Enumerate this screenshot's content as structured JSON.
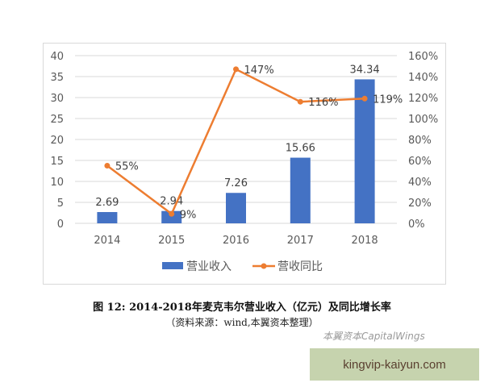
{
  "chart_data": {
    "type": "bar+line",
    "categories": [
      "2014",
      "2015",
      "2016",
      "2017",
      "2018"
    ],
    "series": [
      {
        "name": "营业收入",
        "type": "bar",
        "axis": "left",
        "values": [
          2.69,
          2.94,
          7.26,
          15.66,
          34.34
        ],
        "labels": [
          "2.69",
          "2.94",
          "7.26",
          "15.66",
          "34.34"
        ],
        "color": "#4472c4"
      },
      {
        "name": "营收同比",
        "type": "line",
        "axis": "right",
        "values": [
          55,
          9,
          147,
          116,
          119
        ],
        "labels": [
          "55%",
          "9%",
          "147%",
          "116%",
          "119%"
        ],
        "color": "#ed7d31"
      }
    ],
    "ylim": [
      0,
      40
    ],
    "yticks": [
      "0",
      "5",
      "10",
      "15",
      "20",
      "25",
      "30",
      "35",
      "40"
    ],
    "y2lim": [
      0,
      160
    ],
    "y2ticks": [
      "0%",
      "20%",
      "40%",
      "60%",
      "80%",
      "100%",
      "120%",
      "140%",
      "160%"
    ],
    "grid": true,
    "legend": "bottom"
  },
  "caption": "图 12:  2014-2018年麦克韦尔营业收入（亿元）及同比增长率",
  "source": "（资料来源：wind,本翼资本整理）",
  "watermark": "本翼资本CapitalWings",
  "banner": "kingvip-kaiyun.com"
}
